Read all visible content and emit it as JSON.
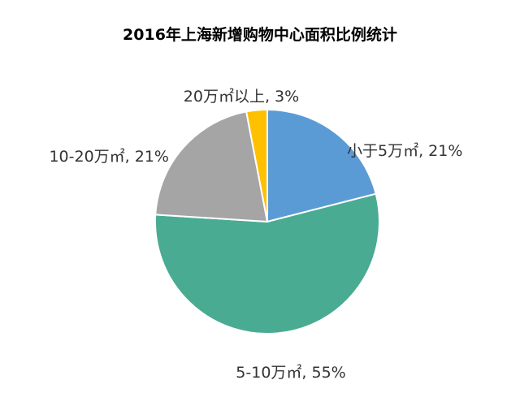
{
  "chart_data": {
    "type": "pie",
    "title": "2016年上海新增购物中心面积比例统计",
    "slices": [
      {
        "label": "小于5万㎡",
        "value": 21,
        "display": "小于5万㎡, 21%",
        "color": "#5b9bd5"
      },
      {
        "label": "5-10万㎡",
        "value": 55,
        "display": "5-10万㎡, 55%",
        "color": "#4aab93"
      },
      {
        "label": "10-20万㎡",
        "value": 21,
        "display": "10-20万㎡, 21%",
        "color": "#a5a5a5"
      },
      {
        "label": "20万㎡以上",
        "value": 3,
        "display": "20万㎡以上, 3%",
        "color": "#ffc000"
      }
    ],
    "start_angle_deg": 0,
    "direction": "clockwise",
    "legend": "none"
  }
}
